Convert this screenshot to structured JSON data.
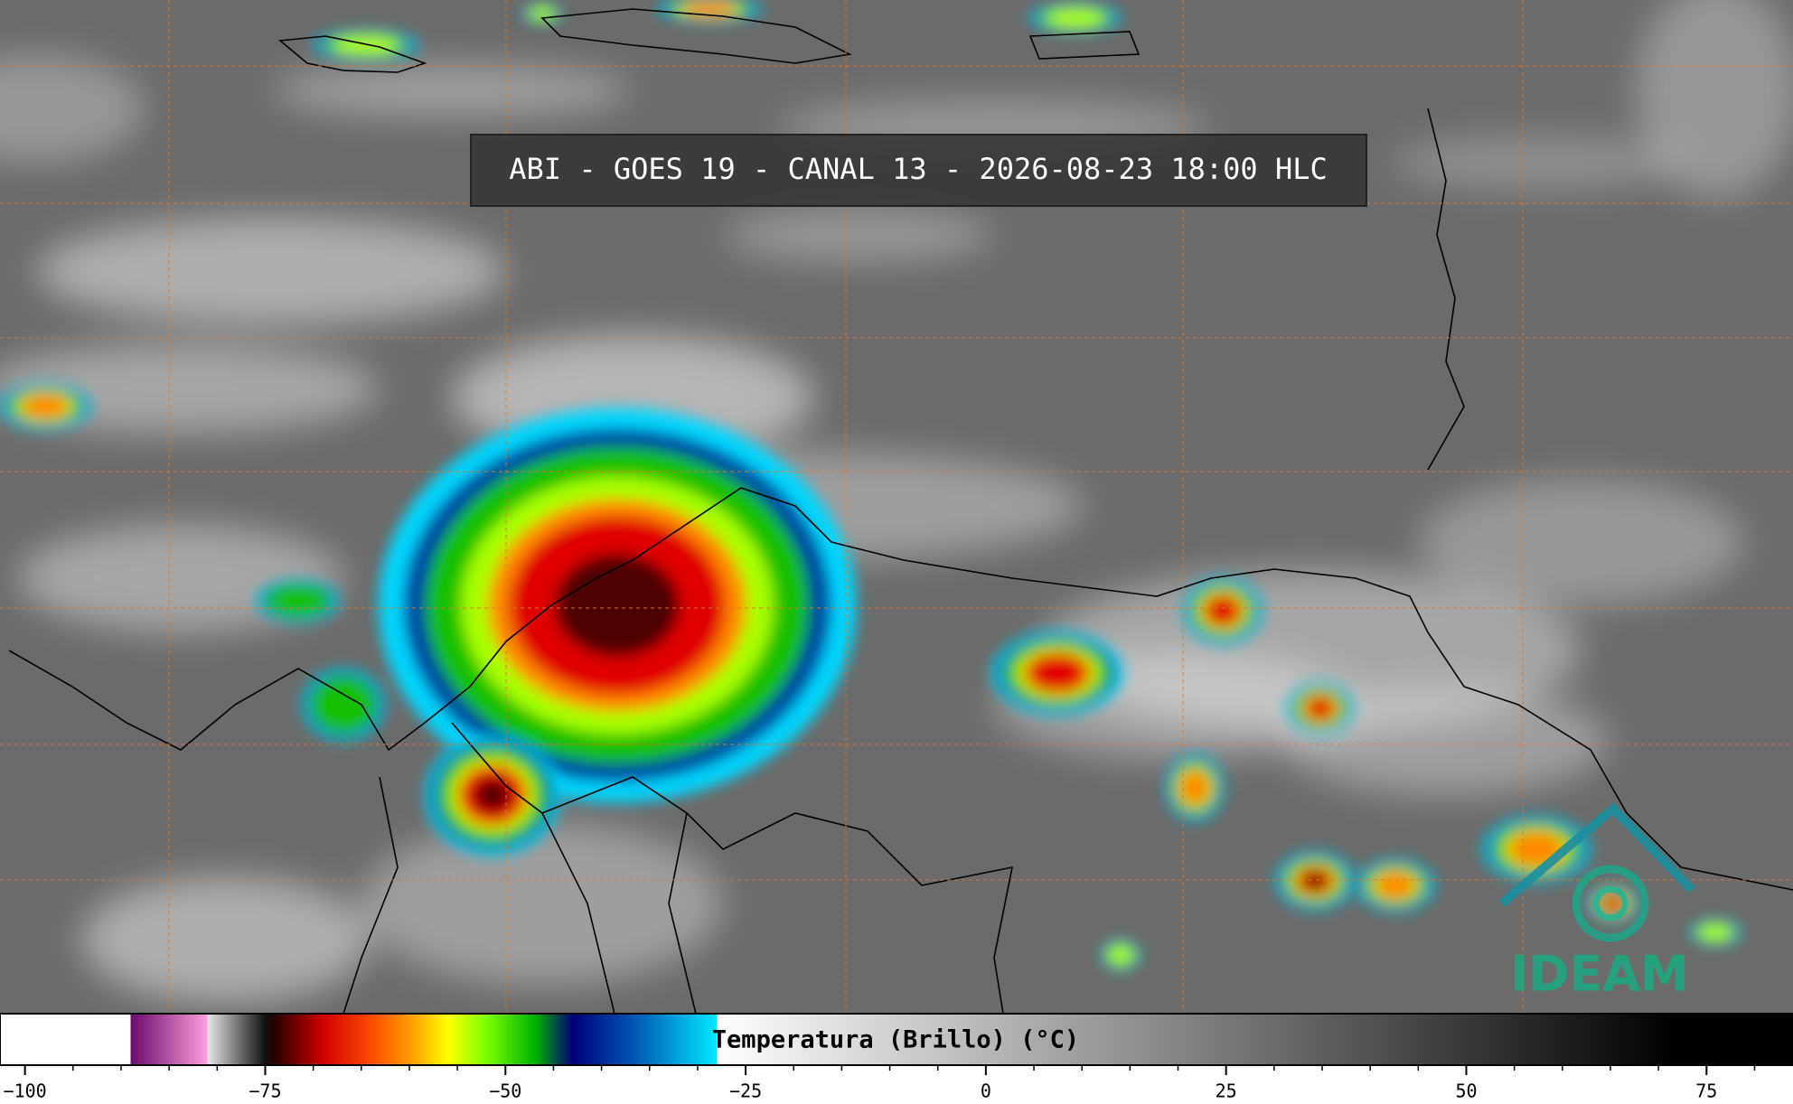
{
  "header": {
    "title": "ABI - GOES 19 - CANAL 13 - 2026-08-23 18:00 HLC"
  },
  "colorbar": {
    "label": "Temperatura (Brillo) (°C)",
    "xlim": [
      -102.6,
      84
    ],
    "xticks": [
      {
        "value": -100,
        "label": "−100"
      },
      {
        "value": -75,
        "label": "−75"
      },
      {
        "value": -50,
        "label": "−50"
      },
      {
        "value": -25,
        "label": "−25"
      },
      0,
      25,
      50,
      75
    ],
    "minor_ticks": [
      -100,
      -95,
      -90,
      -85,
      -80,
      -75,
      -70,
      -65,
      -60,
      -55,
      -50,
      -45,
      -40,
      -35,
      -30,
      -25,
      -20,
      -15,
      -10,
      -5,
      0,
      5,
      10,
      15,
      20,
      25,
      30,
      35,
      40,
      45,
      50,
      55,
      60,
      65,
      70,
      75,
      80
    ],
    "stops": [
      {
        "value": -102.6,
        "color": "#ffffff"
      },
      {
        "value": -89,
        "color": "#ffffff"
      },
      {
        "value": -89,
        "color": "#6a0a6e"
      },
      {
        "value": -81,
        "color": "#ff9fdc"
      },
      {
        "value": -81,
        "color": "#e6e6e6"
      },
      {
        "value": -75,
        "color": "#111111"
      },
      {
        "value": -74,
        "color": "#2a0000"
      },
      {
        "value": -69,
        "color": "#d00000"
      },
      {
        "value": -64,
        "color": "#ff4a00"
      },
      {
        "value": -59,
        "color": "#ffb000"
      },
      {
        "value": -56,
        "color": "#ffff00"
      },
      {
        "value": -52,
        "color": "#7cff00"
      },
      {
        "value": -47,
        "color": "#00b400"
      },
      {
        "value": -43,
        "color": "#00007a"
      },
      {
        "value": -37,
        "color": "#0050b0"
      },
      {
        "value": -28,
        "color": "#00e8ff"
      },
      {
        "value": -28,
        "color": "#ffffff"
      },
      {
        "value": 72,
        "color": "#000000"
      },
      {
        "value": 84,
        "color": "#000000"
      }
    ]
  },
  "logo": {
    "text": "IDEAM"
  }
}
